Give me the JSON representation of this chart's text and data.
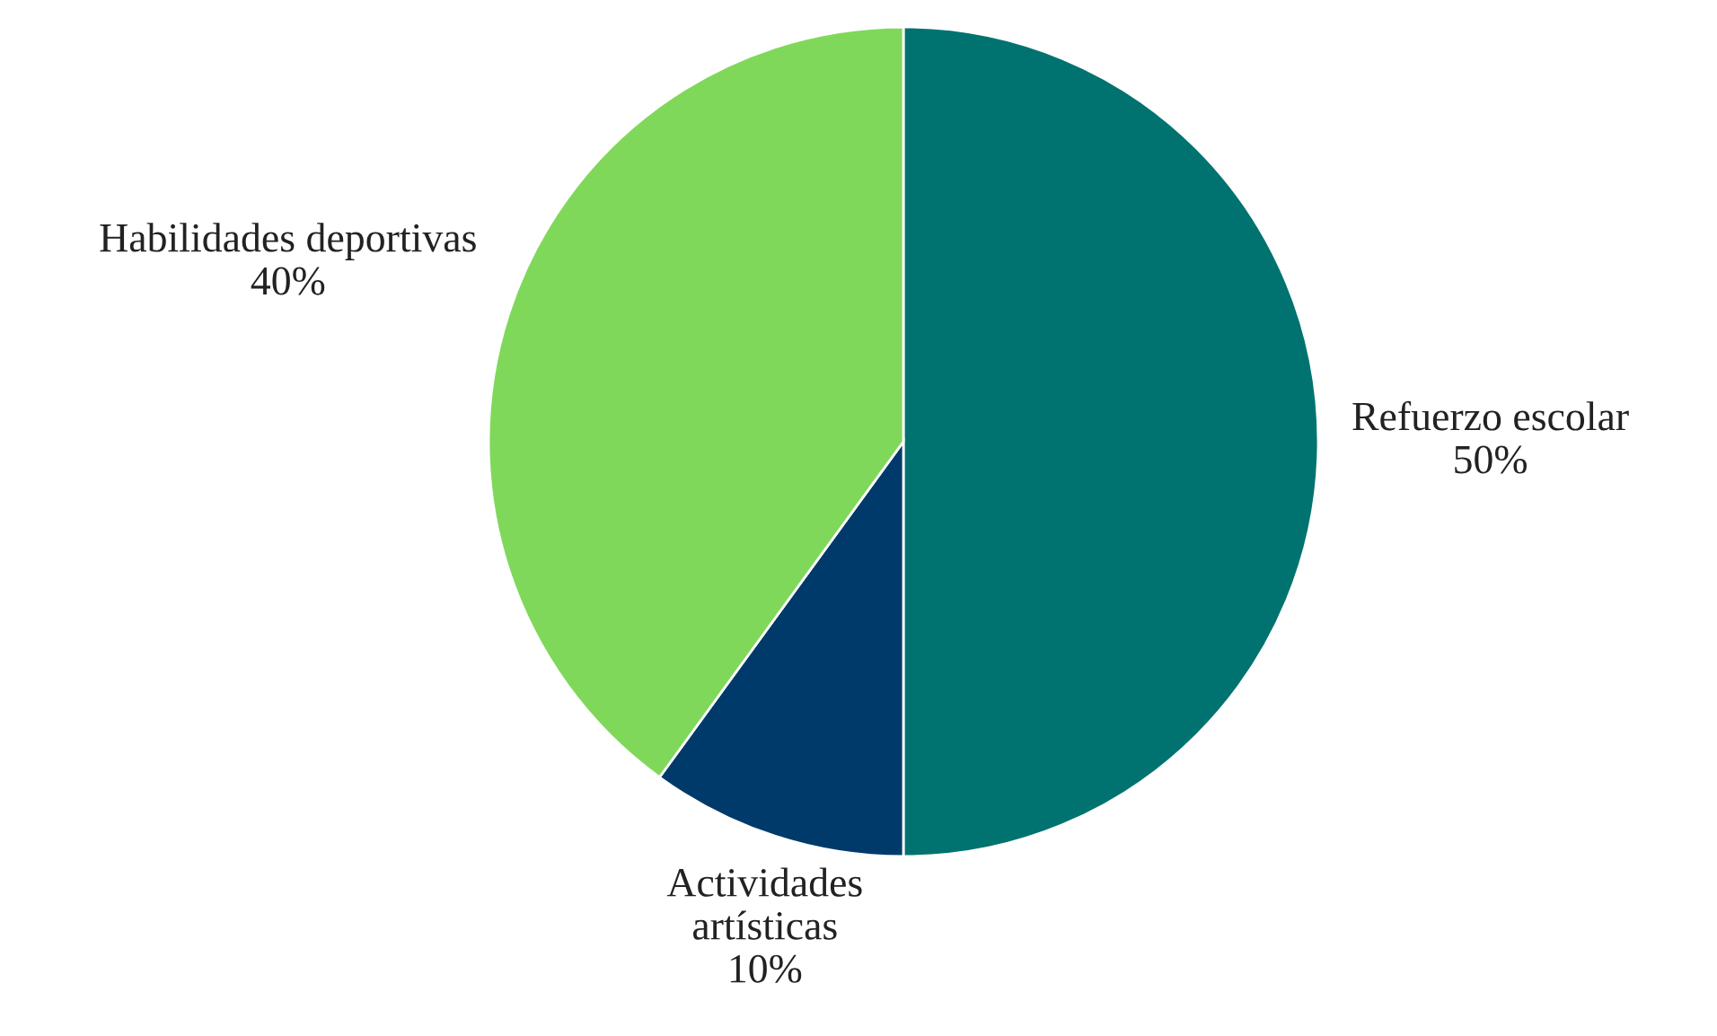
{
  "chart_data": {
    "type": "pie",
    "categories": [
      "Refuerzo escolar",
      "Actividades artísticas",
      "Habilidades deportivas"
    ],
    "values": [
      50,
      10,
      40
    ],
    "colors": [
      "#007370",
      "#003a6b",
      "#80d85a"
    ],
    "value_labels": [
      "50%",
      "10%",
      "40%"
    ]
  }
}
